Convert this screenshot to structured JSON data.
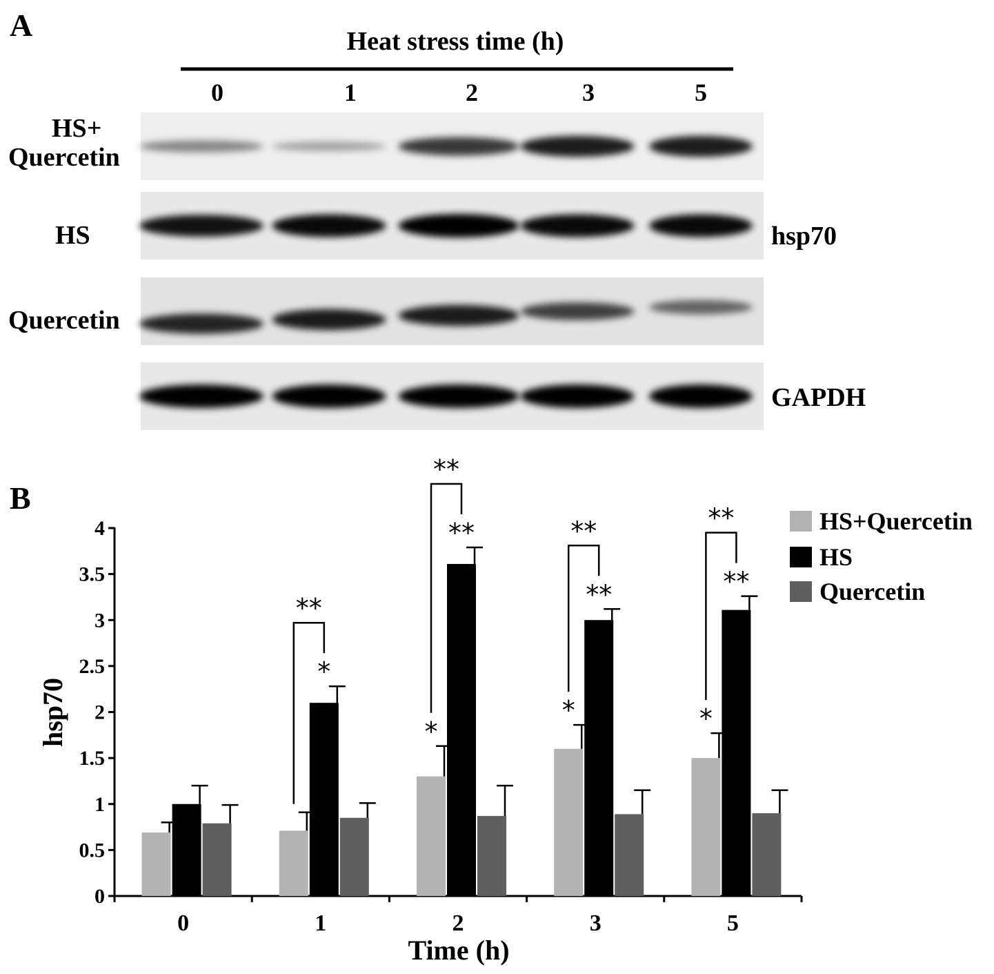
{
  "panel_a": {
    "panel_label": "A",
    "header": "Heat stress time (h)",
    "time_points": [
      "0",
      "1",
      "2",
      "3",
      "5"
    ],
    "row_labels": {
      "hs_quercetin_line1": "HS+",
      "hs_quercetin_line2": "Quercetin",
      "hs": "HS",
      "quercetin": "Quercetin"
    },
    "protein_labels": {
      "hsp70": "hsp70",
      "gapdh": "GAPDH"
    },
    "blots": [
      {
        "id": "hs_quercetin",
        "background": "#eeeeee",
        "band_intensity": [
          0.3,
          0.15,
          0.7,
          0.85,
          0.85
        ]
      },
      {
        "id": "hs",
        "background": "#e8e8e8",
        "band_intensity": [
          0.9,
          0.95,
          1.0,
          0.95,
          0.95
        ]
      },
      {
        "id": "quercetin",
        "background": "#e2e2e2",
        "band_intensity": [
          0.8,
          0.85,
          0.85,
          0.65,
          0.45
        ]
      },
      {
        "id": "gapdh",
        "background": "#e8e8e8",
        "band_intensity": [
          1.0,
          1.0,
          1.0,
          1.0,
          1.0
        ]
      }
    ]
  },
  "panel_b": {
    "panel_label": "B"
  },
  "chart_data": {
    "type": "bar",
    "categories": [
      "0",
      "1",
      "2",
      "3",
      "5"
    ],
    "xlabel": "Time (h)",
    "ylabel": "hsp70",
    "ylim": [
      0,
      4
    ],
    "yticks": [
      "0",
      "0.5",
      "1",
      "1.5",
      "2",
      "2.5",
      "3",
      "3.5",
      "4"
    ],
    "legend_position": "top-right",
    "series": [
      {
        "name": "HS+Quercetin",
        "color": "#b3b3b3",
        "values": [
          0.69,
          0.71,
          1.3,
          1.6,
          1.5
        ],
        "errors": [
          0.11,
          0.2,
          0.33,
          0.26,
          0.27
        ],
        "significance": [
          "",
          "",
          "*",
          "*",
          "*"
        ]
      },
      {
        "name": "HS",
        "color": "#000000",
        "values": [
          1.0,
          2.1,
          3.61,
          3.0,
          3.11
        ],
        "errors": [
          0.2,
          0.18,
          0.18,
          0.12,
          0.15
        ],
        "significance": [
          "",
          "*",
          "**",
          "**",
          "**"
        ]
      },
      {
        "name": "Quercetin",
        "color": "#5f5f5f",
        "values": [
          0.79,
          0.85,
          0.87,
          0.89,
          0.9
        ],
        "errors": [
          0.2,
          0.16,
          0.33,
          0.26,
          0.25
        ],
        "significance": [
          "",
          "",
          "",
          "",
          ""
        ]
      }
    ],
    "comparisons": [
      {
        "category": "1",
        "label": "**"
      },
      {
        "category": "2",
        "label": "**"
      },
      {
        "category": "3",
        "label": "**"
      },
      {
        "category": "5",
        "label": "**"
      }
    ]
  }
}
